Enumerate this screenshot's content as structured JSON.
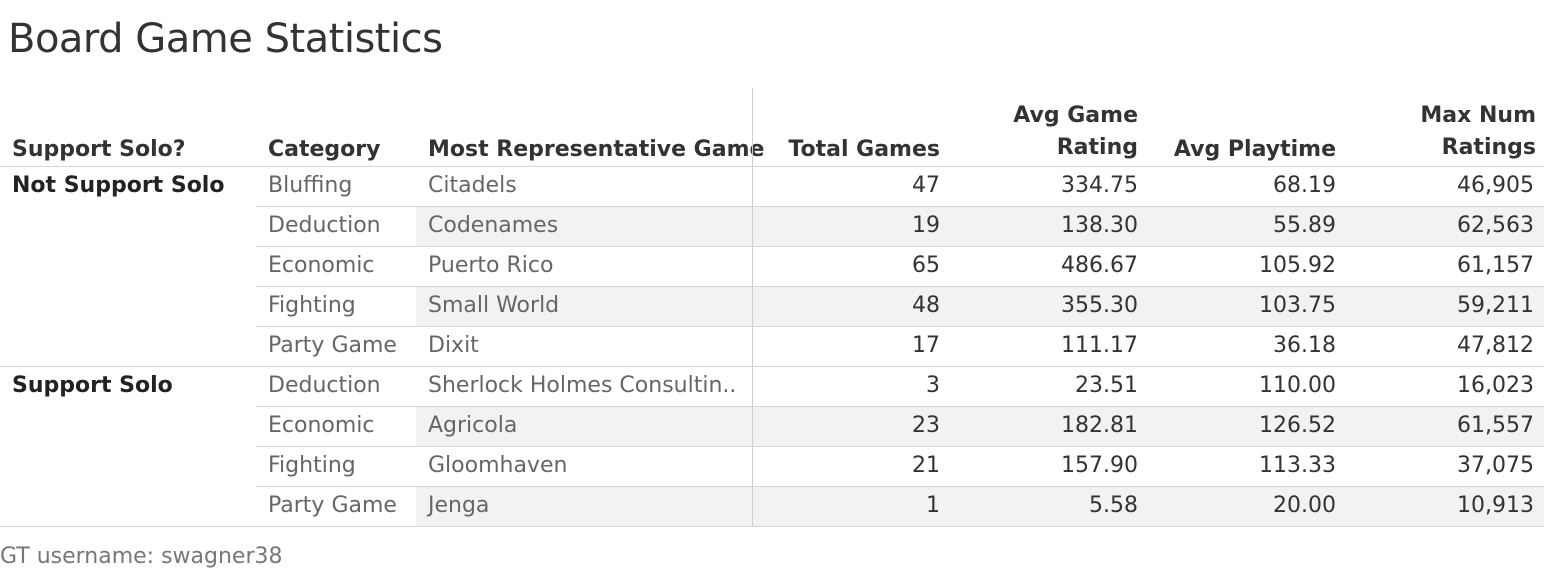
{
  "title": "Board Game Statistics",
  "footer": "GT username: swagner38",
  "chart_data": {
    "type": "table",
    "columns": {
      "solo": "Support Solo?",
      "category": "Category",
      "game": "Most Representative Game",
      "total": "Total Games",
      "rating_l1": "Avg Game",
      "rating_l2": "Rating",
      "playtime": "Avg Playtime",
      "maxnum_l1": "Max Num",
      "maxnum_l2": "Ratings"
    },
    "groups": [
      {
        "label": "Not Support Solo",
        "rows": [
          {
            "category": "Bluffing",
            "game": "Citadels",
            "total": "47",
            "rating": "334.75",
            "playtime": "68.19",
            "max": "46,905"
          },
          {
            "category": "Deduction",
            "game": "Codenames",
            "total": "19",
            "rating": "138.30",
            "playtime": "55.89",
            "max": "62,563"
          },
          {
            "category": "Economic",
            "game": "Puerto Rico",
            "total": "65",
            "rating": "486.67",
            "playtime": "105.92",
            "max": "61,157"
          },
          {
            "category": "Fighting",
            "game": "Small World",
            "total": "48",
            "rating": "355.30",
            "playtime": "103.75",
            "max": "59,211"
          },
          {
            "category": "Party Game",
            "game": "Dixit",
            "total": "17",
            "rating": "111.17",
            "playtime": "36.18",
            "max": "47,812"
          }
        ]
      },
      {
        "label": "Support Solo",
        "rows": [
          {
            "category": "Deduction",
            "game": "Sherlock Holmes Consultin..",
            "total": "3",
            "rating": "23.51",
            "playtime": "110.00",
            "max": "16,023"
          },
          {
            "category": "Economic",
            "game": "Agricola",
            "total": "23",
            "rating": "182.81",
            "playtime": "126.52",
            "max": "61,557"
          },
          {
            "category": "Fighting",
            "game": "Gloomhaven",
            "total": "21",
            "rating": "157.90",
            "playtime": "113.33",
            "max": "37,075"
          },
          {
            "category": "Party Game",
            "game": "Jenga",
            "total": "1",
            "rating": "5.58",
            "playtime": "20.00",
            "max": "10,913"
          }
        ]
      }
    ]
  }
}
